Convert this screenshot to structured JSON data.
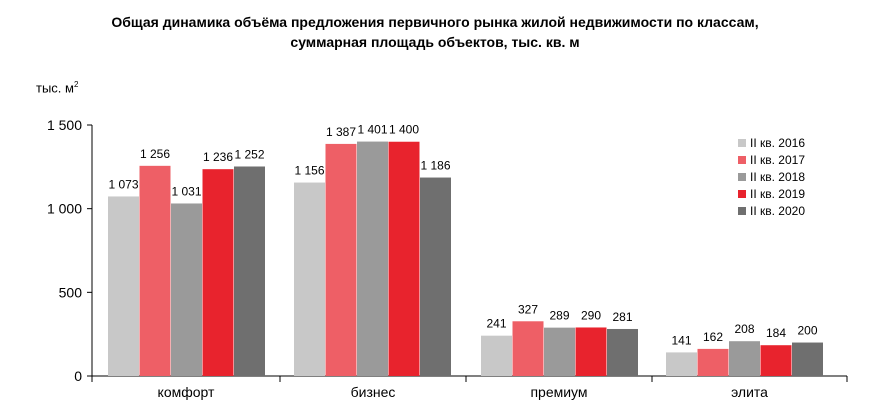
{
  "chart_data": {
    "type": "bar",
    "title": "Общая динамика объёма предложения первичного рынка жилой недвижимости по классам,",
    "subtitle": "суммарная площадь объектов, тыс. кв. м",
    "ylabel": "тыс. м",
    "ylabel_sup": "2",
    "ylim": [
      0,
      1500
    ],
    "yticks": [
      0,
      500,
      1000,
      1500
    ],
    "ytick_labels": [
      "0",
      "500",
      "1 000",
      "1 500"
    ],
    "grid": false,
    "legend_position": "right",
    "categories": [
      "комфорт",
      "бизнес",
      "премиум",
      "элита"
    ],
    "series": [
      {
        "name": "II кв. 2016",
        "color": "#c8c8c8",
        "values": [
          1073,
          1156,
          241,
          141
        ],
        "labels": [
          "1 073",
          "1 156",
          "241",
          "141"
        ]
      },
      {
        "name": "II кв. 2017",
        "color": "#ee5f66",
        "values": [
          1256,
          1387,
          327,
          162
        ],
        "labels": [
          "1 256",
          "1 387",
          "327",
          "162"
        ]
      },
      {
        "name": "II кв. 2018",
        "color": "#9a9a9a",
        "values": [
          1031,
          1401,
          289,
          208
        ],
        "labels": [
          "1 031",
          "1 401",
          "289",
          "208"
        ]
      },
      {
        "name": "II кв. 2019",
        "color": "#e8232d",
        "values": [
          1236,
          1400,
          290,
          184
        ],
        "labels": [
          "1 236",
          "1 400",
          "290",
          "184"
        ]
      },
      {
        "name": "II кв. 2020",
        "color": "#6f6f6f",
        "values": [
          1252,
          1186,
          281,
          200
        ],
        "labels": [
          "1 252",
          "1 186",
          "281",
          "200"
        ]
      }
    ]
  }
}
